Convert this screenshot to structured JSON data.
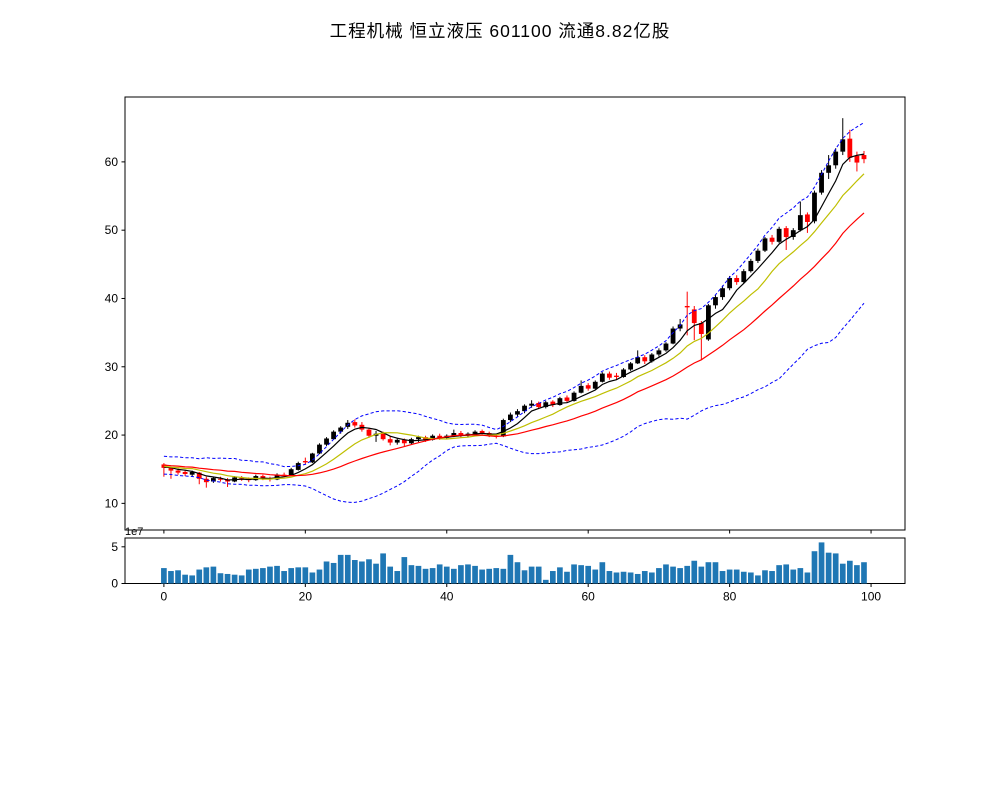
{
  "page": {
    "background": "#ffffff",
    "title": "工程机械 恒立液压 601100 流通8.82亿股"
  },
  "chart_data": {
    "type": "candlestick+volume",
    "title": "工程机械 恒立液压 601100 流通8.82亿股",
    "stock": {
      "industry": "工程机械",
      "name": "恒立液压",
      "code": "601100",
      "float_shares": "流通8.82亿股"
    },
    "x": {
      "ticks": [
        0,
        20,
        40,
        60,
        80,
        100
      ],
      "range": [
        -5.5,
        104.8
      ]
    },
    "price_axis": {
      "ticks": [
        10,
        20,
        30,
        40,
        50,
        60
      ],
      "range": [
        6.1,
        69.5
      ]
    },
    "volume_axis": {
      "ticks": [
        0,
        5
      ],
      "range": [
        0,
        6.2
      ],
      "scale_label": "1e7"
    },
    "colors": {
      "up": "#000000",
      "down": "#ff0000",
      "volume_bar": "#1f77b4",
      "ma5": "#000000",
      "ma10": "#bfbf00",
      "ma20": "#ff0000",
      "bollinger": "#0000ff"
    },
    "overlays": {
      "ma": [
        {
          "name": "MA5",
          "window": 5,
          "color": "#000000",
          "style": "solid"
        },
        {
          "name": "MA10",
          "window": 10,
          "color": "#bfbf00",
          "style": "solid"
        },
        {
          "name": "MA20",
          "window": 20,
          "color": "#ff0000",
          "style": "solid"
        }
      ],
      "bollinger": {
        "name": "Bollinger(20,2)",
        "window": 20,
        "k": 2,
        "color": "#0000ff",
        "style": "dashed"
      },
      "warmup_closes": [
        17.0,
        16.5,
        15.8,
        16.6,
        15.2,
        16.8,
        15.0,
        16.2,
        14.8,
        15.9,
        14.6,
        16.4,
        15.1,
        15.7,
        14.7,
        16.0,
        15.3,
        15.8,
        14.9,
        15.5
      ]
    },
    "ohlc": [
      [
        15.7,
        15.9,
        13.9,
        15.2
      ],
      [
        15.2,
        15.4,
        13.6,
        14.8
      ],
      [
        14.8,
        15.1,
        14.2,
        14.5
      ],
      [
        14.6,
        14.9,
        14.0,
        14.3
      ],
      [
        14.2,
        14.8,
        14.0,
        14.6
      ],
      [
        14.5,
        14.6,
        12.8,
        13.6
      ],
      [
        13.6,
        13.9,
        12.3,
        13.1
      ],
      [
        13.2,
        13.9,
        13.0,
        13.7
      ],
      [
        13.6,
        13.9,
        13.2,
        13.5
      ],
      [
        13.5,
        13.7,
        12.4,
        13.2
      ],
      [
        13.2,
        14.0,
        13.1,
        13.8
      ],
      [
        13.7,
        14.0,
        13.3,
        13.6
      ],
      [
        13.6,
        13.8,
        13.1,
        13.4
      ],
      [
        13.4,
        14.2,
        13.3,
        14.0
      ],
      [
        14.0,
        14.2,
        13.4,
        13.7
      ],
      [
        13.7,
        13.9,
        13.2,
        13.5
      ],
      [
        13.5,
        14.4,
        13.4,
        14.2
      ],
      [
        14.2,
        14.5,
        13.9,
        14.1
      ],
      [
        14.1,
        15.2,
        14.0,
        15.0
      ],
      [
        14.9,
        16.1,
        14.8,
        15.9
      ],
      [
        16.2,
        16.7,
        15.7,
        16.0
      ],
      [
        16.0,
        17.4,
        15.9,
        17.3
      ],
      [
        17.3,
        18.8,
        17.2,
        18.6
      ],
      [
        18.6,
        19.7,
        18.4,
        19.5
      ],
      [
        19.4,
        20.7,
        19.3,
        20.5
      ],
      [
        20.5,
        21.3,
        20.2,
        21.1
      ],
      [
        21.2,
        22.2,
        20.9,
        21.8
      ],
      [
        21.9,
        22.3,
        21.1,
        21.4
      ],
      [
        21.5,
        21.9,
        20.5,
        20.8
      ],
      [
        20.8,
        21.1,
        19.6,
        19.9
      ],
      [
        19.9,
        20.6,
        19.0,
        20.2
      ],
      [
        20.2,
        20.5,
        19.2,
        19.4
      ],
      [
        19.4,
        19.8,
        18.5,
        18.9
      ],
      [
        18.9,
        19.6,
        18.6,
        19.3
      ],
      [
        19.3,
        19.5,
        18.4,
        18.8
      ],
      [
        18.8,
        19.6,
        18.6,
        19.4
      ],
      [
        19.4,
        19.9,
        19.0,
        19.7
      ],
      [
        19.7,
        19.9,
        19.0,
        19.3
      ],
      [
        19.3,
        20.1,
        19.2,
        19.9
      ],
      [
        19.9,
        20.2,
        19.3,
        19.6
      ],
      [
        19.6,
        20.1,
        19.4,
        19.9
      ],
      [
        19.9,
        20.8,
        19.7,
        20.3
      ],
      [
        20.3,
        20.6,
        19.6,
        19.9
      ],
      [
        19.9,
        20.4,
        19.7,
        20.2
      ],
      [
        20.2,
        20.7,
        20.0,
        20.5
      ],
      [
        20.6,
        20.8,
        20.1,
        20.3
      ],
      [
        20.3,
        20.5,
        19.7,
        19.9
      ],
      [
        19.9,
        20.2,
        19.5,
        19.8
      ],
      [
        19.8,
        22.4,
        19.7,
        22.2
      ],
      [
        22.2,
        23.3,
        21.9,
        23.0
      ],
      [
        23.0,
        23.8,
        22.7,
        23.5
      ],
      [
        23.5,
        24.5,
        23.2,
        24.3
      ],
      [
        24.3,
        25.1,
        24.0,
        24.6
      ],
      [
        24.7,
        24.9,
        23.8,
        24.1
      ],
      [
        24.1,
        25.0,
        23.9,
        24.8
      ],
      [
        24.9,
        25.1,
        24.1,
        24.4
      ],
      [
        24.4,
        25.6,
        24.3,
        25.4
      ],
      [
        25.5,
        25.8,
        24.7,
        25.0
      ],
      [
        25.0,
        26.4,
        24.9,
        26.2
      ],
      [
        26.2,
        28.0,
        26.1,
        27.2
      ],
      [
        27.3,
        27.6,
        26.5,
        26.8
      ],
      [
        26.8,
        28.0,
        26.7,
        27.8
      ],
      [
        27.8,
        29.2,
        27.7,
        29.0
      ],
      [
        29.0,
        29.3,
        28.1,
        28.4
      ],
      [
        28.7,
        29.1,
        28.1,
        28.5
      ],
      [
        28.5,
        29.8,
        28.4,
        29.6
      ],
      [
        29.6,
        30.7,
        29.4,
        30.5
      ],
      [
        30.5,
        32.4,
        30.4,
        31.4
      ],
      [
        31.4,
        31.7,
        30.4,
        30.8
      ],
      [
        30.8,
        32.0,
        30.6,
        31.8
      ],
      [
        31.8,
        32.7,
        31.5,
        32.4
      ],
      [
        32.4,
        33.6,
        32.2,
        33.4
      ],
      [
        33.4,
        35.9,
        33.3,
        35.6
      ],
      [
        35.6,
        37.0,
        35.2,
        36.2
      ],
      [
        38.9,
        41.0,
        34.6,
        38.7
      ],
      [
        38.4,
        38.9,
        33.9,
        36.4
      ],
      [
        36.4,
        36.7,
        31.0,
        34.8
      ],
      [
        34.0,
        39.2,
        33.8,
        39.0
      ],
      [
        39.0,
        40.5,
        38.5,
        40.2
      ],
      [
        40.2,
        41.9,
        39.8,
        41.5
      ],
      [
        41.5,
        43.3,
        41.2,
        43.0
      ],
      [
        43.0,
        43.4,
        42.0,
        42.4
      ],
      [
        42.4,
        44.3,
        42.2,
        44.0
      ],
      [
        44.0,
        45.8,
        43.8,
        45.5
      ],
      [
        45.5,
        47.3,
        45.2,
        47.0
      ],
      [
        47.0,
        49.0,
        46.8,
        48.8
      ],
      [
        48.9,
        49.3,
        47.9,
        48.3
      ],
      [
        48.3,
        50.5,
        48.1,
        50.2
      ],
      [
        50.3,
        50.6,
        47.1,
        49.0
      ],
      [
        49.0,
        50.3,
        48.6,
        50.0
      ],
      [
        50.0,
        54.2,
        49.8,
        52.2
      ],
      [
        52.3,
        52.6,
        49.6,
        51.2
      ],
      [
        51.3,
        55.8,
        51.0,
        55.5
      ],
      [
        55.5,
        58.8,
        55.2,
        58.4
      ],
      [
        58.4,
        61.0,
        57.5,
        59.5
      ],
      [
        59.5,
        62.0,
        59.0,
        61.5
      ],
      [
        61.5,
        66.4,
        61.0,
        63.3
      ],
      [
        63.4,
        64.7,
        60.0,
        60.6
      ],
      [
        60.9,
        61.5,
        58.6,
        59.9
      ],
      [
        61.0,
        61.6,
        59.8,
        60.4
      ]
    ],
    "volume_1e7": [
      2.1,
      1.7,
      1.8,
      1.2,
      1.1,
      1.9,
      2.2,
      2.3,
      1.4,
      1.3,
      1.2,
      1.1,
      1.9,
      2.0,
      2.1,
      2.3,
      2.4,
      1.7,
      2.1,
      2.2,
      2.2,
      1.5,
      1.9,
      3.0,
      2.8,
      3.9,
      3.9,
      3.2,
      3.0,
      3.3,
      2.7,
      4.1,
      2.3,
      1.7,
      3.6,
      2.5,
      2.4,
      2.0,
      2.1,
      2.6,
      2.3,
      2.0,
      2.5,
      2.6,
      2.4,
      1.9,
      2.0,
      2.1,
      2.0,
      3.9,
      2.9,
      1.8,
      2.3,
      2.3,
      0.5,
      1.7,
      2.2,
      1.6,
      2.6,
      2.5,
      2.4,
      1.9,
      2.9,
      1.7,
      1.5,
      1.6,
      1.5,
      1.3,
      1.7,
      1.5,
      2.1,
      2.6,
      2.3,
      2.1,
      2.4,
      3.1,
      2.3,
      2.9,
      2.9,
      1.7,
      1.9,
      1.9,
      1.6,
      1.5,
      1.1,
      1.8,
      1.7,
      2.5,
      2.6,
      1.9,
      2.1,
      1.5,
      4.4,
      5.6,
      4.2,
      4.1,
      2.7,
      3.1,
      2.5,
      2.9
    ]
  }
}
